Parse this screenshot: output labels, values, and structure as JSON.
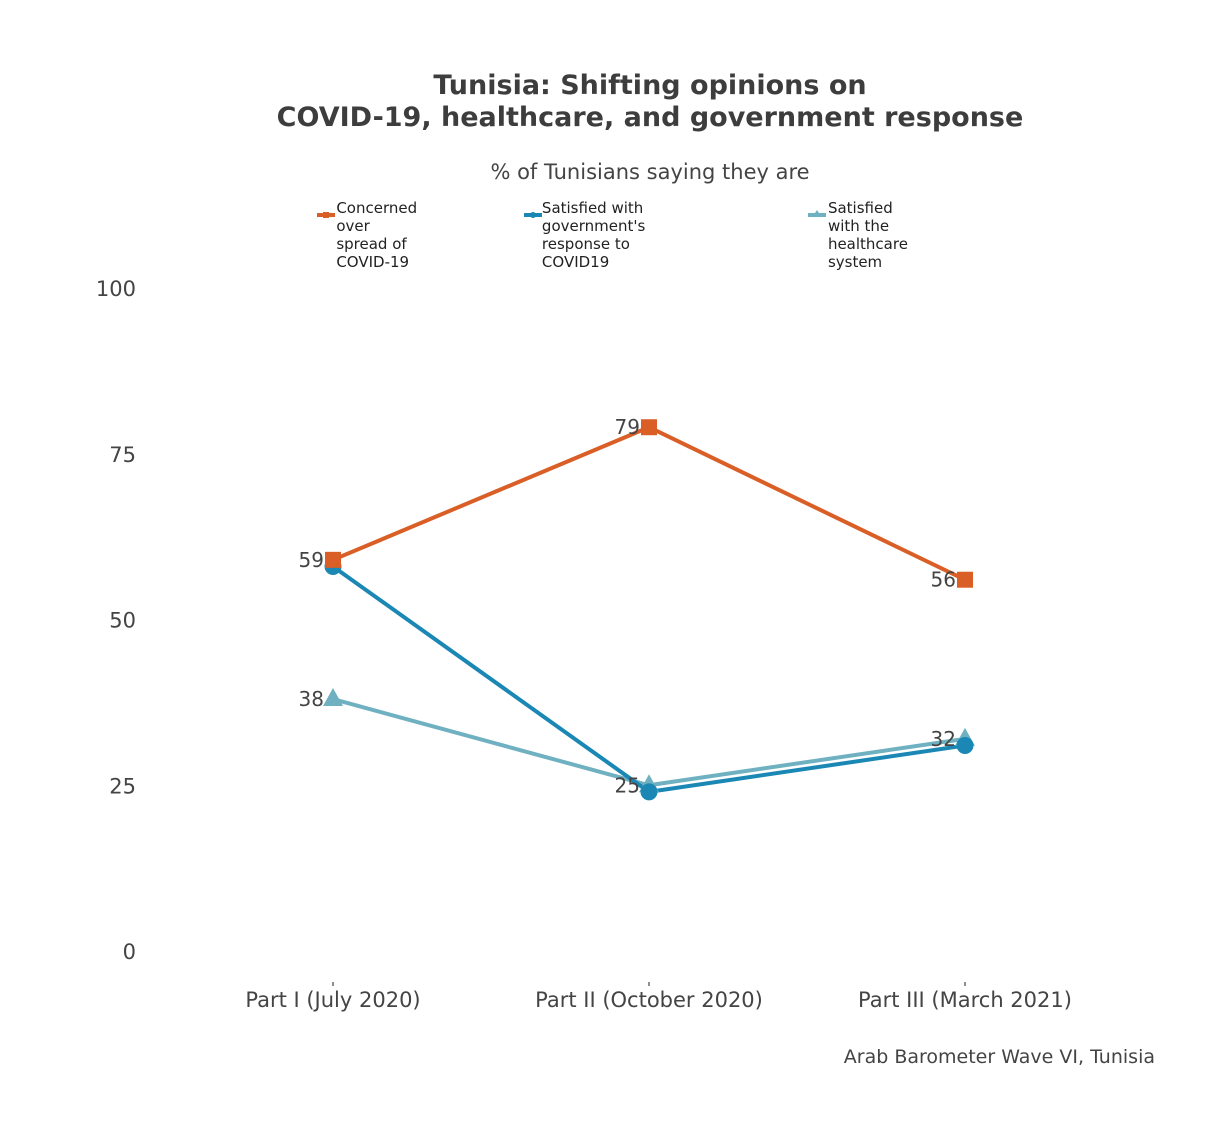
{
  "chart_data": {
    "type": "line",
    "title_line1": "Tunisia: Shifting opinions on",
    "title_line2": "COVID-19, healthcare, and government response",
    "subtitle": "% of Tunisians saying they are",
    "categories": [
      "Part I (July 2020)",
      "Part II (October 2020)",
      "Part III (March 2021)"
    ],
    "y_ticks": [
      "0",
      "25",
      "50",
      "75",
      "100"
    ],
    "ylim": [
      0,
      100
    ],
    "series": [
      {
        "name": "Concerned over\nspread of COVID-19",
        "color": "#d95f26",
        "marker": "square",
        "values": [
          59,
          79,
          56
        ],
        "labels": [
          "59",
          "79",
          "56"
        ]
      },
      {
        "name": "Satisfied with government's\nresponse to COVID19",
        "color": "#1a87b5",
        "marker": "circle",
        "values": [
          58,
          24,
          31
        ],
        "labels": []
      },
      {
        "name": "Satisfied with the\nhealthcare system",
        "color": "#6fb1c1",
        "marker": "triangle",
        "values": [
          38,
          25,
          32
        ],
        "labels": [
          "38",
          "25",
          "32"
        ]
      }
    ],
    "source": "Arab Barometer Wave VI, Tunisia"
  }
}
